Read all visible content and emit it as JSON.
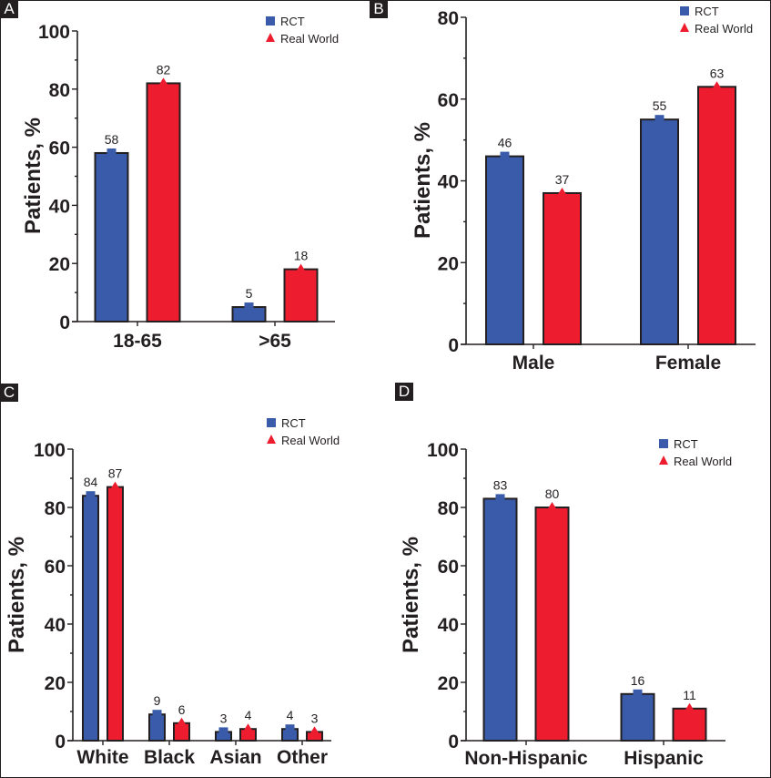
{
  "colors": {
    "rct": "#3a5ba9",
    "real_world": "#ed1c2e",
    "axis": "#231f20"
  },
  "chart_data": [
    {
      "panel": "A",
      "type": "bar",
      "ylabel": "Patients, %",
      "xlabel": "",
      "ylim": [
        0,
        100
      ],
      "yticks": [
        0,
        20,
        40,
        60,
        80,
        100
      ],
      "minor_step": 10,
      "categories": [
        "18-65",
        ">65"
      ],
      "series": [
        {
          "name": "RCT",
          "marker": "square",
          "values": [
            58,
            5
          ]
        },
        {
          "name": "Real World",
          "marker": "triangle",
          "values": [
            82,
            18
          ]
        }
      ],
      "legend": "top-right",
      "grid": false
    },
    {
      "panel": "B",
      "type": "bar",
      "ylabel": "Patients, %",
      "xlabel": "",
      "ylim": [
        0,
        80
      ],
      "yticks": [
        0,
        20,
        40,
        60,
        80
      ],
      "minor_step": 10,
      "categories": [
        "Male",
        "Female"
      ],
      "series": [
        {
          "name": "RCT",
          "marker": "square",
          "values": [
            46,
            55
          ]
        },
        {
          "name": "Real World",
          "marker": "triangle",
          "values": [
            37,
            63
          ]
        }
      ],
      "legend": "top-right",
      "grid": false
    },
    {
      "panel": "C",
      "type": "bar",
      "ylabel": "Patients, %",
      "xlabel": "",
      "ylim": [
        0,
        100
      ],
      "yticks": [
        0,
        20,
        40,
        60,
        80,
        100
      ],
      "minor_step": 10,
      "categories": [
        "White",
        "Black",
        "Asian",
        "Other"
      ],
      "series": [
        {
          "name": "RCT",
          "marker": "square",
          "values": [
            84,
            9,
            3,
            4
          ]
        },
        {
          "name": "Real World",
          "marker": "triangle",
          "values": [
            87,
            6,
            4,
            3
          ]
        }
      ],
      "legend": "top-right",
      "grid": false
    },
    {
      "panel": "D",
      "type": "bar",
      "ylabel": "Patients, %",
      "xlabel": "",
      "ylim": [
        0,
        100
      ],
      "yticks": [
        0,
        20,
        40,
        60,
        80,
        100
      ],
      "minor_step": 10,
      "categories": [
        "Non-Hispanic",
        "Hispanic"
      ],
      "series": [
        {
          "name": "RCT",
          "marker": "square",
          "values": [
            83,
            16
          ]
        },
        {
          "name": "Real World",
          "marker": "triangle",
          "values": [
            80,
            11
          ]
        }
      ],
      "legend": "top-right",
      "grid": false
    }
  ]
}
